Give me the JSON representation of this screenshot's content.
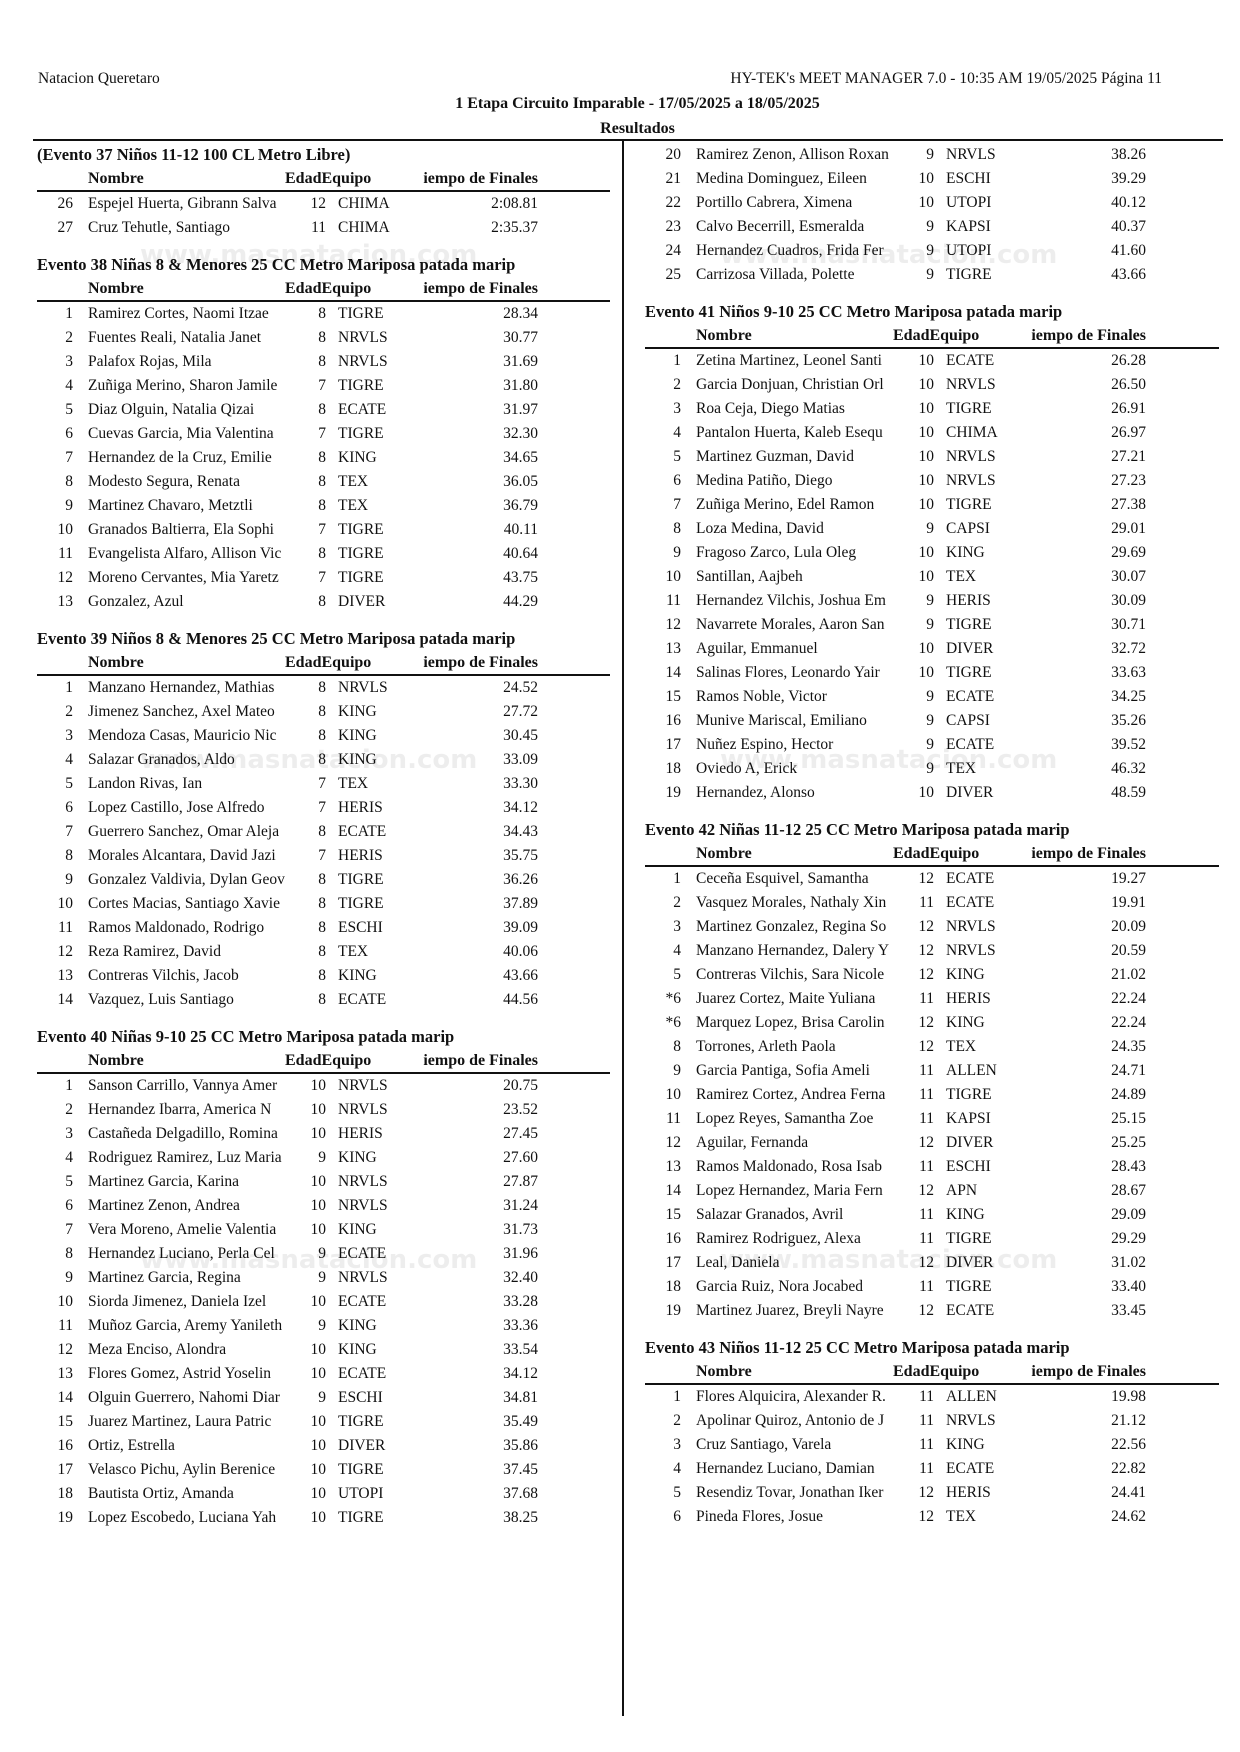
{
  "header": {
    "organization": "Natacion Queretaro",
    "software_info": "HY-TEK's MEET MANAGER 7.0 - 10:35 AM  19/05/2025  Página 11",
    "meet_title": "1 Etapa Circuito Imparable - 17/05/2025 a 18/05/2025",
    "subtitle": "Resultados"
  },
  "watermark": "www.masnatacion.com",
  "columns_header": {
    "name": "Nombre",
    "age_team": "EdadEquipo",
    "time": "iempo de Finales"
  },
  "columns": {
    "left": [
      {
        "title": "(Evento 37  Niños 11-12 100 CL Metro Libre)",
        "rows": [
          [
            "26",
            "Espejel Huerta, Gibrann Salva",
            "12",
            "CHIMA",
            "2:08.81"
          ],
          [
            "27",
            "Cruz Tehutle, Santiago",
            "11",
            "CHIMA",
            "2:35.37"
          ]
        ]
      },
      {
        "title": "Evento 38  Niñas 8 & Menores 25 CC Metro Mariposa patada marip",
        "rows": [
          [
            "1",
            "Ramirez Cortes, Naomi Itzae",
            "8",
            "TIGRE",
            "28.34"
          ],
          [
            "2",
            "Fuentes Reali, Natalia Janet",
            "8",
            "NRVLS",
            "30.77"
          ],
          [
            "3",
            "Palafox Rojas, Mila",
            "8",
            "NRVLS",
            "31.69"
          ],
          [
            "4",
            "Zuñiga Merino, Sharon Jamile",
            "7",
            "TIGRE",
            "31.80"
          ],
          [
            "5",
            "Diaz Olguin, Natalia Qizai",
            "8",
            "ECATE",
            "31.97"
          ],
          [
            "6",
            "Cuevas Garcia, Mia Valentina",
            "7",
            "TIGRE",
            "32.30"
          ],
          [
            "7",
            "Hernandez de la Cruz, Emilie",
            "8",
            "KING",
            "34.65"
          ],
          [
            "8",
            "Modesto Segura, Renata",
            "8",
            "TEX",
            "36.05"
          ],
          [
            "9",
            "Martinez Chavaro, Metztli",
            "8",
            "TEX",
            "36.79"
          ],
          [
            "10",
            "Granados Baltierra, Ela Sophi",
            "7",
            "TIGRE",
            "40.11"
          ],
          [
            "11",
            "Evangelista Alfaro, Allison Vic",
            "8",
            "TIGRE",
            "40.64"
          ],
          [
            "12",
            "Moreno Cervantes, Mia Yaretz",
            "7",
            "TIGRE",
            "43.75"
          ],
          [
            "13",
            "Gonzalez, Azul",
            "8",
            "DIVER",
            "44.29"
          ]
        ]
      },
      {
        "title": "Evento 39  Niños 8 & Menores 25 CC Metro Mariposa patada marip",
        "rows": [
          [
            "1",
            "Manzano Hernandez, Mathias",
            "8",
            "NRVLS",
            "24.52"
          ],
          [
            "2",
            "Jimenez Sanchez, Axel Mateo",
            "8",
            "KING",
            "27.72"
          ],
          [
            "3",
            "Mendoza Casas, Mauricio Nic",
            "8",
            "KING",
            "30.45"
          ],
          [
            "4",
            "Salazar Granados, Aldo",
            "8",
            "KING",
            "33.09"
          ],
          [
            "5",
            "Landon Rivas, Ian",
            "7",
            "TEX",
            "33.30"
          ],
          [
            "6",
            "Lopez Castillo, Jose Alfredo",
            "7",
            "HERIS",
            "34.12"
          ],
          [
            "7",
            "Guerrero Sanchez, Omar Aleja",
            "8",
            "ECATE",
            "34.43"
          ],
          [
            "8",
            "Morales Alcantara, David Jazi",
            "7",
            "HERIS",
            "35.75"
          ],
          [
            "9",
            "Gonzalez Valdivia, Dylan Geov",
            "8",
            "TIGRE",
            "36.26"
          ],
          [
            "10",
            "Cortes Macias, Santiago Xavie",
            "8",
            "TIGRE",
            "37.89"
          ],
          [
            "11",
            "Ramos Maldonado, Rodrigo",
            "8",
            "ESCHI",
            "39.09"
          ],
          [
            "12",
            "Reza Ramirez, David",
            "8",
            "TEX",
            "40.06"
          ],
          [
            "13",
            "Contreras Vilchis, Jacob",
            "8",
            "KING",
            "43.66"
          ],
          [
            "14",
            "Vazquez, Luis Santiago",
            "8",
            "ECATE",
            "44.56"
          ]
        ]
      },
      {
        "title": "Evento 40  Niñas 9-10 25 CC Metro Mariposa patada marip",
        "rows": [
          [
            "1",
            "Sanson Carrillo, Vannya Amer",
            "10",
            "NRVLS",
            "20.75"
          ],
          [
            "2",
            "Hernandez Ibarra, America N",
            "10",
            "NRVLS",
            "23.52"
          ],
          [
            "3",
            "Castañeda Delgadillo, Romina",
            "10",
            "HERIS",
            "27.45"
          ],
          [
            "4",
            "Rodriguez Ramirez, Luz Maria",
            "9",
            "KING",
            "27.60"
          ],
          [
            "5",
            "Martinez Garcia, Karina",
            "10",
            "NRVLS",
            "27.87"
          ],
          [
            "6",
            "Martinez Zenon, Andrea",
            "10",
            "NRVLS",
            "31.24"
          ],
          [
            "7",
            "Vera Moreno, Amelie Valentia",
            "10",
            "KING",
            "31.73"
          ],
          [
            "8",
            "Hernandez Luciano, Perla Cel",
            "9",
            "ECATE",
            "31.96"
          ],
          [
            "9",
            "Martinez Garcia, Regina",
            "9",
            "NRVLS",
            "32.40"
          ],
          [
            "10",
            "Siorda Jimenez, Daniela Izel",
            "10",
            "ECATE",
            "33.28"
          ],
          [
            "11",
            "Muñoz Garcia, Aremy Yanileth",
            "9",
            "KING",
            "33.36"
          ],
          [
            "12",
            "Meza Enciso, Alondra",
            "10",
            "KING",
            "33.54"
          ],
          [
            "13",
            "Flores Gomez, Astrid Yoselin",
            "10",
            "ECATE",
            "34.12"
          ],
          [
            "14",
            "Olguin Guerrero, Nahomi Diar",
            "9",
            "ESCHI",
            "34.81"
          ],
          [
            "15",
            "Juarez Martinez, Laura Patric",
            "10",
            "TIGRE",
            "35.49"
          ],
          [
            "16",
            "Ortiz, Estrella",
            "10",
            "DIVER",
            "35.86"
          ],
          [
            "17",
            "Velasco Pichu, Aylin Berenice",
            "10",
            "TIGRE",
            "37.45"
          ],
          [
            "18",
            "Bautista Ortiz, Amanda",
            "10",
            "UTOPI",
            "37.68"
          ],
          [
            "19",
            "Lopez Escobedo, Luciana Yah",
            "10",
            "TIGRE",
            "38.25"
          ]
        ]
      }
    ],
    "right": [
      {
        "title": "",
        "rows": [
          [
            "20",
            "Ramirez Zenon, Allison Roxan",
            "9",
            "NRVLS",
            "38.26"
          ],
          [
            "21",
            "Medina Dominguez, Eileen",
            "10",
            "ESCHI",
            "39.29"
          ],
          [
            "22",
            "Portillo Cabrera, Ximena",
            "10",
            "UTOPI",
            "40.12"
          ],
          [
            "23",
            "Calvo Becerrill, Esmeralda",
            "9",
            "KAPSI",
            "40.37"
          ],
          [
            "24",
            "Hernandez Cuadros, Frida Fer",
            "9",
            "UTOPI",
            "41.60"
          ],
          [
            "25",
            "Carrizosa Villada, Polette",
            "9",
            "TIGRE",
            "43.66"
          ]
        ]
      },
      {
        "title": "Evento 41  Niños 9-10 25 CC Metro Mariposa patada marip",
        "rows": [
          [
            "1",
            "Zetina Martinez, Leonel Santi",
            "10",
            "ECATE",
            "26.28"
          ],
          [
            "2",
            "Garcia Donjuan, Christian Orl",
            "10",
            "NRVLS",
            "26.50"
          ],
          [
            "3",
            "Roa Ceja, Diego Matias",
            "10",
            "TIGRE",
            "26.91"
          ],
          [
            "4",
            "Pantalon Huerta, Kaleb Esequ",
            "10",
            "CHIMA",
            "26.97"
          ],
          [
            "5",
            "Martinez Guzman, David",
            "10",
            "NRVLS",
            "27.21"
          ],
          [
            "6",
            "Medina Patiño, Diego",
            "10",
            "NRVLS",
            "27.23"
          ],
          [
            "7",
            "Zuñiga Merino, Edel Ramon",
            "10",
            "TIGRE",
            "27.38"
          ],
          [
            "8",
            "Loza Medina, David",
            "9",
            "CAPSI",
            "29.01"
          ],
          [
            "9",
            "Fragoso Zarco, Lula Oleg",
            "10",
            "KING",
            "29.69"
          ],
          [
            "10",
            "Santillan, Aajbeh",
            "10",
            "TEX",
            "30.07"
          ],
          [
            "11",
            "Hernandez Vilchis, Joshua Em",
            "9",
            "HERIS",
            "30.09"
          ],
          [
            "12",
            "Navarrete Morales, Aaron San",
            "9",
            "TIGRE",
            "30.71"
          ],
          [
            "13",
            "Aguilar, Emmanuel",
            "10",
            "DIVER",
            "32.72"
          ],
          [
            "14",
            "Salinas Flores, Leonardo Yair",
            "10",
            "TIGRE",
            "33.63"
          ],
          [
            "15",
            "Ramos Noble, Victor",
            "9",
            "ECATE",
            "34.25"
          ],
          [
            "16",
            "Munive Mariscal, Emiliano",
            "9",
            "CAPSI",
            "35.26"
          ],
          [
            "17",
            "Nuñez Espino, Hector",
            "9",
            "ECATE",
            "39.52"
          ],
          [
            "18",
            "Oviedo A, Erick",
            "9",
            "TEX",
            "46.32"
          ],
          [
            "19",
            "Hernandez, Alonso",
            "10",
            "DIVER",
            "48.59"
          ]
        ]
      },
      {
        "title": "Evento 42  Niñas 11-12 25 CC Metro Mariposa patada marip",
        "rows": [
          [
            "1",
            "Ceceña Esquivel, Samantha",
            "12",
            "ECATE",
            "19.27"
          ],
          [
            "2",
            "Vasquez Morales, Nathaly Xin",
            "11",
            "ECATE",
            "19.91"
          ],
          [
            "3",
            "Martinez Gonzalez, Regina So",
            "12",
            "NRVLS",
            "20.09"
          ],
          [
            "4",
            "Manzano Hernandez, Dalery Y",
            "12",
            "NRVLS",
            "20.59"
          ],
          [
            "5",
            "Contreras Vilchis, Sara Nicole",
            "12",
            "KING",
            "21.02"
          ],
          [
            "*6",
            "Juarez Cortez, Maite Yuliana",
            "11",
            "HERIS",
            "22.24"
          ],
          [
            "*6",
            "Marquez Lopez, Brisa Carolin",
            "12",
            "KING",
            "22.24"
          ],
          [
            "8",
            "Torrones, Arleth Paola",
            "12",
            "TEX",
            "24.35"
          ],
          [
            "9",
            "Garcia Pantiga, Sofia Ameli",
            "11",
            "ALLEN",
            "24.71"
          ],
          [
            "10",
            "Ramirez Cortez, Andrea Ferna",
            "11",
            "TIGRE",
            "24.89"
          ],
          [
            "11",
            "Lopez Reyes, Samantha Zoe",
            "11",
            "KAPSI",
            "25.15"
          ],
          [
            "12",
            "Aguilar, Fernanda",
            "12",
            "DIVER",
            "25.25"
          ],
          [
            "13",
            "Ramos Maldonado, Rosa Isab",
            "11",
            "ESCHI",
            "28.43"
          ],
          [
            "14",
            "Lopez Hernandez, Maria Fern",
            "12",
            "APN",
            "28.67"
          ],
          [
            "15",
            "Salazar Granados, Avril",
            "11",
            "KING",
            "29.09"
          ],
          [
            "16",
            "Ramirez Rodriguez, Alexa",
            "11",
            "TIGRE",
            "29.29"
          ],
          [
            "17",
            "Leal, Daniela",
            "12",
            "DIVER",
            "31.02"
          ],
          [
            "18",
            "Garcia Ruiz, Nora Jocabed",
            "11",
            "TIGRE",
            "33.40"
          ],
          [
            "19",
            "Martinez Juarez, Breyli Nayre",
            "12",
            "ECATE",
            "33.45"
          ]
        ]
      },
      {
        "title": "Evento 43  Niños 11-12 25 CC Metro Mariposa patada marip",
        "rows": [
          [
            "1",
            "Flores Alquicira, Alexander R.",
            "11",
            "ALLEN",
            "19.98"
          ],
          [
            "2",
            "Apolinar Quiroz, Antonio de J",
            "11",
            "NRVLS",
            "21.12"
          ],
          [
            "3",
            "Cruz Santiago, Varela",
            "11",
            "KING",
            "22.56"
          ],
          [
            "4",
            "Hernandez Luciano, Damian",
            "11",
            "ECATE",
            "22.82"
          ],
          [
            "5",
            "Resendiz Tovar, Jonathan Iker",
            "12",
            "HERIS",
            "24.41"
          ],
          [
            "6",
            "Pineda Flores, Josue",
            "12",
            "TEX",
            "24.62"
          ]
        ]
      }
    ]
  }
}
